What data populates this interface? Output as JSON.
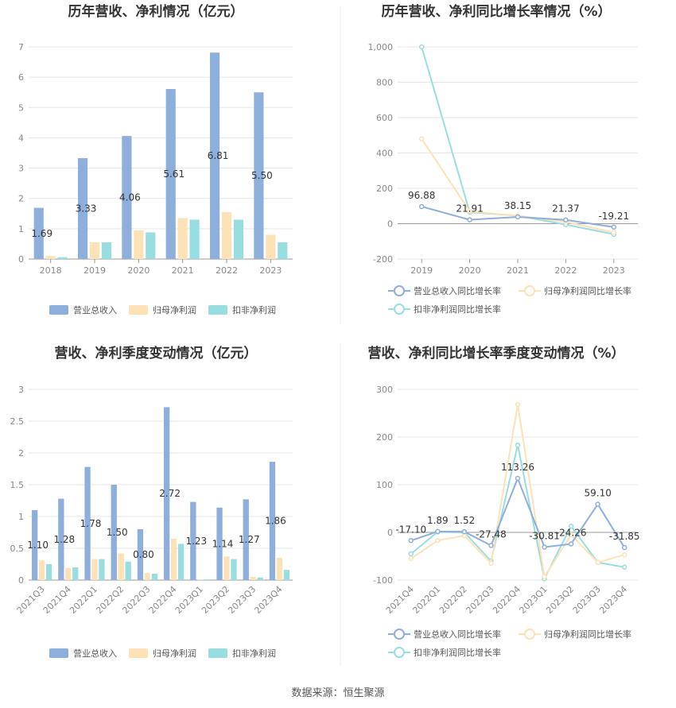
{
  "source": "数据来源：恒生聚源",
  "chart_data": [
    {
      "type": "bar",
      "title": "历年营收、净利情况（亿元）",
      "categories": [
        "2018",
        "2019",
        "2020",
        "2021",
        "2022",
        "2023"
      ],
      "ylim": [
        0,
        7
      ],
      "yticks": [
        "0",
        "1",
        "2",
        "3",
        "4",
        "5",
        "6",
        "7"
      ],
      "series": [
        {
          "name": "营业总收入",
          "values": [
            1.69,
            3.33,
            4.06,
            5.61,
            6.81,
            5.5
          ],
          "labels": [
            "1.69",
            "3.33",
            "4.06",
            "5.61",
            "6.81",
            "5.50"
          ]
        },
        {
          "name": "归母净利润",
          "values": [
            0.1,
            0.55,
            0.95,
            1.35,
            1.55,
            0.8
          ]
        },
        {
          "name": "扣非净利润",
          "values": [
            0.06,
            0.55,
            0.88,
            1.3,
            1.3,
            0.55
          ]
        }
      ],
      "colors": [
        "#8eaedc",
        "#fce2b6",
        "#98dde0"
      ],
      "grid": true,
      "legend": "bottom"
    },
    {
      "type": "line",
      "title": "历年营收、净利同比增长率情况（%）",
      "categories": [
        "2019",
        "2020",
        "2021",
        "2022",
        "2023"
      ],
      "ylim": [
        -200,
        1000
      ],
      "yticks": [
        "-200",
        "0",
        "200",
        "400",
        "600",
        "800",
        "1,000"
      ],
      "series": [
        {
          "name": "营业总收入同比增长率",
          "values": [
            96.88,
            21.91,
            38.15,
            21.37,
            -19.21
          ],
          "labels": [
            "96.88",
            "21.91",
            "38.15",
            "21.37",
            "-19.21"
          ]
        },
        {
          "name": "归母净利润同比增长率",
          "values": [
            480,
            70,
            45,
            10,
            -50
          ]
        },
        {
          "name": "扣非净利润同比增长率",
          "values": [
            1000,
            65,
            45,
            -5,
            -60
          ]
        }
      ],
      "colors": [
        "#8eaedc",
        "#fce2b6",
        "#98dde0"
      ],
      "grid": true,
      "legend": "bottom"
    },
    {
      "type": "bar",
      "title": "营收、净利季度变动情况（亿元）",
      "categories": [
        "2021Q3",
        "2021Q4",
        "2022Q1",
        "2022Q2",
        "2022Q3",
        "2022Q4",
        "2023Q1",
        "2023Q2",
        "2023Q3",
        "2023Q4"
      ],
      "ylim": [
        0,
        3
      ],
      "yticks": [
        "0",
        "0.5",
        "1",
        "1.5",
        "2",
        "2.5",
        "3"
      ],
      "series": [
        {
          "name": "营业总收入",
          "values": [
            1.1,
            1.28,
            1.78,
            1.5,
            0.8,
            2.72,
            1.23,
            1.14,
            1.27,
            1.86
          ],
          "labels": [
            "1.10",
            "1.28",
            "1.78",
            "1.50",
            "0.80",
            "2.72",
            "1.23",
            "1.14",
            "1.27",
            "1.86"
          ]
        },
        {
          "name": "归母净利润",
          "values": [
            0.31,
            0.19,
            0.33,
            0.42,
            0.11,
            0.65,
            0.01,
            0.37,
            0.05,
            0.35
          ]
        },
        {
          "name": "扣非净利润",
          "values": [
            0.25,
            0.2,
            0.33,
            0.29,
            0.1,
            0.57,
            0.01,
            0.33,
            0.04,
            0.16
          ]
        }
      ],
      "colors": [
        "#8eaedc",
        "#fce2b6",
        "#98dde0"
      ],
      "grid": true,
      "legend": "bottom"
    },
    {
      "type": "line",
      "title": "营收、净利同比增长率季度变动情况（%）",
      "categories": [
        "2021Q4",
        "2022Q1",
        "2022Q2",
        "2022Q3",
        "2022Q4",
        "2023Q1",
        "2023Q2",
        "2023Q3",
        "2023Q4"
      ],
      "ylim": [
        -100,
        300
      ],
      "yticks": [
        "-100",
        "0",
        "100",
        "200",
        "300"
      ],
      "series": [
        {
          "name": "营业总收入同比增长率",
          "values": [
            -17.1,
            1.89,
            1.52,
            -27.48,
            113.26,
            -30.81,
            -24.26,
            59.1,
            -31.85
          ],
          "labels": [
            "-17.10",
            "1.89",
            "1.52",
            "-27.48",
            "113.26",
            "-30.81",
            "-24.26",
            "59.10",
            "-31.85"
          ]
        },
        {
          "name": "归母净利润同比增长率",
          "values": [
            -55,
            -17,
            -7,
            -65,
            268,
            -93,
            -5,
            -63,
            -47
          ]
        },
        {
          "name": "扣非净利润同比增长率",
          "values": [
            -45,
            1,
            0,
            -60,
            183,
            -97,
            13,
            -63,
            -73
          ]
        }
      ],
      "colors": [
        "#8eaedc",
        "#fce2b6",
        "#98dde0"
      ],
      "grid": true,
      "legend": "bottom"
    }
  ]
}
